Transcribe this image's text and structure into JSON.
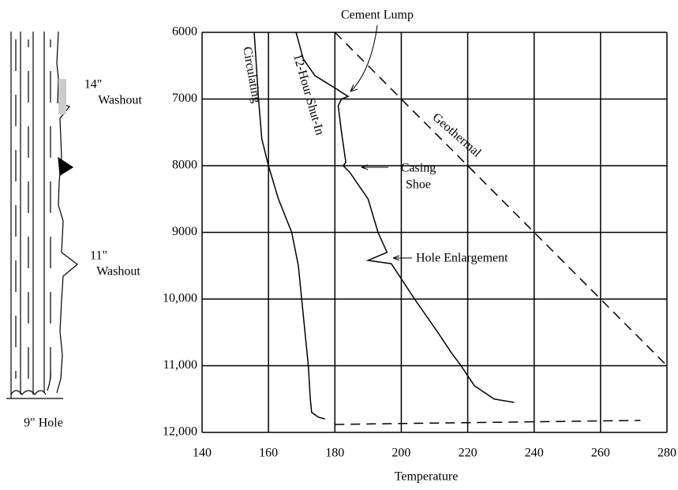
{
  "chart_data": {
    "type": "line",
    "x_label": "Temperature",
    "xlim": [
      140,
      280
    ],
    "xticks": [
      140,
      160,
      180,
      200,
      220,
      240,
      260,
      280
    ],
    "ylim": [
      12000,
      6000
    ],
    "yticks": [
      6000,
      7000,
      8000,
      9000,
      {
        "value": 10000,
        "label": "10,000"
      },
      {
        "value": 11000,
        "label": "11,000"
      },
      {
        "value": 12000,
        "label": "12,000"
      }
    ],
    "grid": true,
    "series": [
      {
        "name": "Circulating",
        "color": "#000000",
        "dash": false,
        "x": [
          155.7,
          157,
          158,
          160,
          163,
          167,
          169,
          170,
          171,
          172,
          172.6,
          173,
          175,
          177
        ],
        "values": [
          6000,
          7000,
          7600,
          8000,
          8500,
          9000,
          9500,
          10000,
          10500,
          11000,
          11500,
          11700,
          11770,
          11800
        ]
      },
      {
        "name": "12-Hour Shut-In",
        "color": "#000000",
        "dash": false,
        "x": [
          168.3,
          170.5,
          174,
          180.5,
          183,
          184,
          182,
          181,
          182,
          183.3,
          182.5,
          184.5,
          190,
          193,
          195.7,
          190,
          197,
          204,
          211,
          215,
          218,
          222,
          228,
          234
        ],
        "values": [
          6000,
          6400,
          6650,
          6850,
          6930,
          6960,
          7000,
          7100,
          7500,
          7950,
          8000,
          8100,
          8500,
          9000,
          9300,
          9420,
          9470,
          10000,
          10500,
          10800,
          11000,
          11300,
          11500,
          11550
        ]
      },
      {
        "name": "Geothermal",
        "color": "#000000",
        "dash": true,
        "x": [
          180,
          280
        ],
        "values": [
          6000,
          11000
        ]
      },
      {
        "color": "#000000",
        "dash": true,
        "x": [
          180,
          272
        ],
        "values": [
          11880,
          11820
        ]
      }
    ],
    "annotations": [
      "Cement Lump",
      "Casing",
      "Shoe",
      "Hole Enlargement"
    ]
  },
  "well_diagram": {
    "upper_label": [
      "14\"",
      "Washout"
    ],
    "lower_label": [
      "11\"",
      "Washout"
    ],
    "caption": "9\" Hole"
  }
}
